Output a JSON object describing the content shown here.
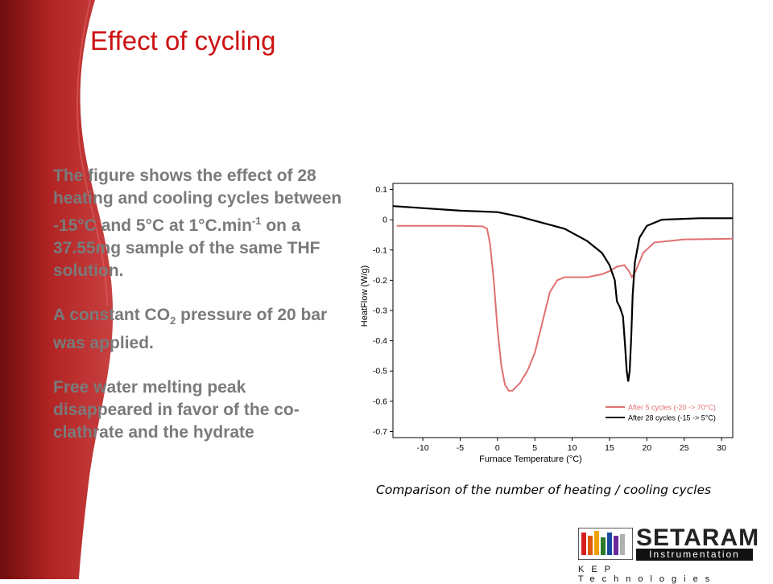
{
  "slide": {
    "title": "Effect of cycling",
    "para1_pre": "The figure shows the effect of 28 heating and cooling cycles between -15°C and 5°C at 1°C.min",
    "para1_sup": "-1",
    "para1_post": " on a 37.55mg sample of the same THF solution.",
    "para2_pre": "A constant CO",
    "para2_sub": "2",
    "para2_post": " pressure of 20 bar was applied.",
    "para3": "Free water melting peak disappeared in favor of the co-clathrate and the hydrate",
    "caption": "Comparison of the number of heating / cooling cycles"
  },
  "logo": {
    "word": "SETARAM",
    "sub": "Instrumentation",
    "kep": "KEP Technologies"
  },
  "colors": {
    "title": "#cc1111",
    "banner_dark": "#7a1010",
    "banner_light": "#c03030",
    "series_5": "#e07070",
    "series_28": "#000000"
  },
  "chart_data": {
    "type": "line",
    "xlabel": "Furnace Temperature (°C)",
    "ylabel": "HeatFlow (W/g)",
    "xlim": [
      -14,
      31.5
    ],
    "ylim": [
      -0.72,
      0.12
    ],
    "xticks": [
      -10,
      -5,
      0,
      5,
      10,
      15,
      20,
      25,
      30
    ],
    "yticks": [
      0.1,
      0,
      -0.1,
      -0.2,
      -0.3,
      -0.4,
      -0.5,
      -0.6,
      -0.7
    ],
    "grid": false,
    "legend_position": "bottom-right",
    "series": [
      {
        "name": "After 5 cycles (-20 -> 70°C)",
        "color": "#e07070",
        "points": [
          [
            -13.5,
            -0.02
          ],
          [
            -5,
            -0.02
          ],
          [
            -2,
            -0.022
          ],
          [
            -1.4,
            -0.03
          ],
          [
            -1,
            -0.08
          ],
          [
            -0.5,
            -0.2
          ],
          [
            0,
            -0.36
          ],
          [
            0.5,
            -0.48
          ],
          [
            1,
            -0.545
          ],
          [
            1.5,
            -0.565
          ],
          [
            2,
            -0.565
          ],
          [
            3,
            -0.54
          ],
          [
            4,
            -0.5
          ],
          [
            5,
            -0.44
          ],
          [
            6,
            -0.34
          ],
          [
            7,
            -0.24
          ],
          [
            8,
            -0.2
          ],
          [
            9,
            -0.19
          ],
          [
            12,
            -0.19
          ],
          [
            14,
            -0.18
          ],
          [
            15,
            -0.17
          ],
          [
            16,
            -0.155
          ],
          [
            17,
            -0.15
          ],
          [
            17.6,
            -0.17
          ],
          [
            18,
            -0.19
          ],
          [
            18.5,
            -0.17
          ],
          [
            19.5,
            -0.11
          ],
          [
            21,
            -0.075
          ],
          [
            25,
            -0.065
          ],
          [
            31.5,
            -0.063
          ]
        ]
      },
      {
        "name": "After 28 cycles (-15 -> 5°C)",
        "color": "#000000",
        "points": [
          [
            -14,
            0.045
          ],
          [
            -5,
            0.03
          ],
          [
            0,
            0.025
          ],
          [
            3,
            0.01
          ],
          [
            6,
            -0.01
          ],
          [
            9,
            -0.03
          ],
          [
            12,
            -0.07
          ],
          [
            14,
            -0.11
          ],
          [
            15,
            -0.15
          ],
          [
            15.7,
            -0.2
          ],
          [
            16,
            -0.27
          ],
          [
            16.4,
            -0.29
          ],
          [
            16.8,
            -0.32
          ],
          [
            17.1,
            -0.42
          ],
          [
            17.3,
            -0.5
          ],
          [
            17.5,
            -0.535
          ],
          [
            17.7,
            -0.5
          ],
          [
            17.9,
            -0.39
          ],
          [
            18.1,
            -0.25
          ],
          [
            18.4,
            -0.14
          ],
          [
            19,
            -0.06
          ],
          [
            20,
            -0.02
          ],
          [
            22,
            0.0
          ],
          [
            27,
            0.005
          ],
          [
            31.5,
            0.005
          ]
        ]
      }
    ]
  }
}
